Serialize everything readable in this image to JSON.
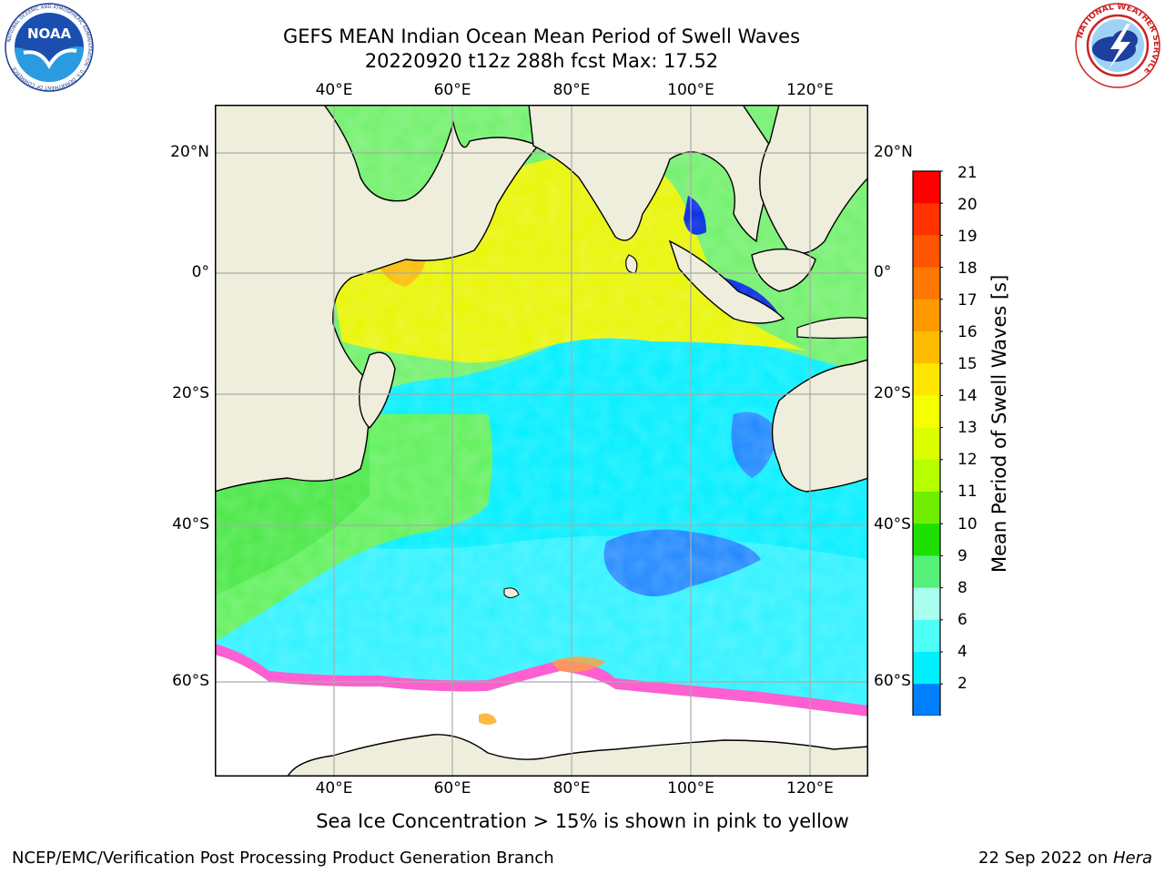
{
  "title": {
    "line1": "GEFS MEAN Indian Ocean Mean Period of Swell Waves",
    "line2": "20220920 t12z 288h fcst   Max: 17.52"
  },
  "map": {
    "lon_ticks": [
      "40°E",
      "60°E",
      "80°E",
      "100°E",
      "120°E"
    ],
    "lat_ticks": [
      "20°N",
      "0°",
      "20°S",
      "40°S",
      "60°S"
    ],
    "lon_values": [
      40,
      60,
      80,
      100,
      120
    ],
    "lat_values": [
      20,
      0,
      -20,
      -40,
      -60
    ],
    "extent": {
      "lon_min": 20,
      "lon_max": 130,
      "lat_min": -72,
      "lat_max": 28
    },
    "ocean_palette": {
      "swell_low": "#00f0ff",
      "swell_mid": "#4df07a",
      "swell_high": "#e6f000",
      "land": "#efeedd",
      "ice": "#ff5fd0"
    }
  },
  "colorbar": {
    "title": "Mean Period of Swell Waves [s]",
    "ticks": [
      "21",
      "20",
      "19",
      "18",
      "17",
      "16",
      "15",
      "14",
      "13",
      "12",
      "11",
      "10",
      "9",
      "8",
      "6",
      "4",
      "2"
    ],
    "colors": [
      "#ff0000",
      "#ff3300",
      "#ff5500",
      "#ff7700",
      "#ff9900",
      "#ffbb00",
      "#ffe600",
      "#f5ff00",
      "#dcff00",
      "#b5ff00",
      "#6fee00",
      "#1ee000",
      "#54f07a",
      "#a8ffee",
      "#4dfff5",
      "#00f0ff",
      "#0080ff"
    ],
    "extend_color": "#0000ff"
  },
  "caption": "Sea Ice Concentration > 15% is shown in pink to yellow",
  "footer": {
    "left": "NCEP/EMC/Verification Post Processing Product Generation Branch",
    "right_prefix": "22 Sep 2022 on ",
    "right_host": "Hera"
  },
  "logos": {
    "noaa_text": "NOAA",
    "noaa_ring": "NATIONAL OCEANIC AND ATMOSPHERIC ADMINISTRATION · U.S. DEPARTMENT OF COMMERCE",
    "nws_ring": "NATIONAL WEATHER SERVICE"
  }
}
